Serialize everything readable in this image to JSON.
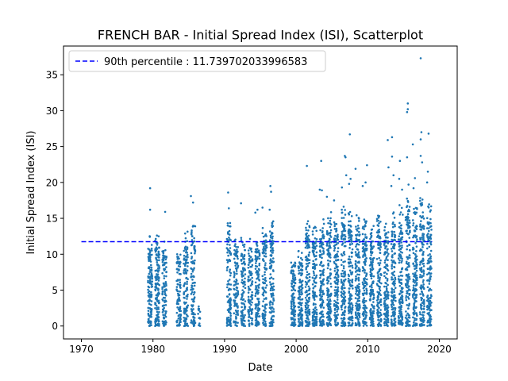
{
  "chart_data": {
    "type": "scatter",
    "title": "FRENCH BAR - Initial Spread Index (ISI), Scatterplot",
    "xlabel": "Date",
    "ylabel": "Initial Spread Index (ISI)",
    "xlim": [
      1967.5,
      2022.5
    ],
    "ylim": [
      -1.8,
      39.0
    ],
    "x_ticks": [
      1970,
      1980,
      1990,
      2000,
      2010,
      2020
    ],
    "y_ticks": [
      0,
      5,
      10,
      15,
      20,
      25,
      30,
      35
    ],
    "grid": false,
    "legend": {
      "placement": "top-left",
      "entries": [
        "90th percentile : 11.739702033996583"
      ]
    },
    "reference_line": {
      "name": "90th percentile : 11.739702033996583",
      "value": 11.739702033996583,
      "x_range": [
        1970,
        2019
      ],
      "style": "dashed",
      "color": "#0000ff"
    },
    "series_color": "#1f77b4",
    "season_clusters": [
      {
        "start": 1979.3,
        "end": 1979.9,
        "n": 130,
        "max": 12.8
      },
      {
        "start": 1980.3,
        "end": 1980.9,
        "n": 140,
        "max": 13.5
      },
      {
        "start": 1981.3,
        "end": 1981.9,
        "n": 110,
        "max": 12.0
      },
      {
        "start": 1983.3,
        "end": 1983.9,
        "n": 90,
        "max": 10.5
      },
      {
        "start": 1984.3,
        "end": 1984.9,
        "n": 120,
        "max": 13.2
      },
      {
        "start": 1985.3,
        "end": 1985.9,
        "n": 110,
        "max": 14.5
      },
      {
        "start": 1986.3,
        "end": 1986.6,
        "n": 15,
        "max": 3.0
      },
      {
        "start": 1990.3,
        "end": 1990.9,
        "n": 120,
        "max": 14.5
      },
      {
        "start": 1991.3,
        "end": 1991.9,
        "n": 100,
        "max": 12.2
      },
      {
        "start": 1992.3,
        "end": 1992.9,
        "n": 110,
        "max": 12.5
      },
      {
        "start": 1993.3,
        "end": 1993.9,
        "n": 100,
        "max": 12.8
      },
      {
        "start": 1994.3,
        "end": 1994.9,
        "n": 120,
        "max": 13.0
      },
      {
        "start": 1995.3,
        "end": 1995.9,
        "n": 110,
        "max": 14.0
      },
      {
        "start": 1996.3,
        "end": 1996.9,
        "n": 120,
        "max": 15.0
      },
      {
        "start": 1999.3,
        "end": 1999.9,
        "n": 120,
        "max": 9.0
      },
      {
        "start": 2000.3,
        "end": 2000.9,
        "n": 130,
        "max": 10.5
      },
      {
        "start": 2001.3,
        "end": 2001.9,
        "n": 150,
        "max": 15.4
      },
      {
        "start": 2002.3,
        "end": 2002.9,
        "n": 150,
        "max": 14.0
      },
      {
        "start": 2003.3,
        "end": 2003.9,
        "n": 150,
        "max": 15.0
      },
      {
        "start": 2004.3,
        "end": 2004.9,
        "n": 150,
        "max": 16.0
      },
      {
        "start": 2005.3,
        "end": 2005.9,
        "n": 150,
        "max": 15.0
      },
      {
        "start": 2006.3,
        "end": 2006.9,
        "n": 150,
        "max": 17.0
      },
      {
        "start": 2007.3,
        "end": 2007.9,
        "n": 150,
        "max": 16.0
      },
      {
        "start": 2008.3,
        "end": 2008.9,
        "n": 150,
        "max": 15.5
      },
      {
        "start": 2009.3,
        "end": 2009.9,
        "n": 150,
        "max": 15.0
      },
      {
        "start": 2010.3,
        "end": 2010.9,
        "n": 140,
        "max": 14.0
      },
      {
        "start": 2011.3,
        "end": 2011.9,
        "n": 140,
        "max": 15.5
      },
      {
        "start": 2012.3,
        "end": 2012.9,
        "n": 140,
        "max": 14.5
      },
      {
        "start": 2013.3,
        "end": 2013.9,
        "n": 150,
        "max": 16.0
      },
      {
        "start": 2014.3,
        "end": 2014.9,
        "n": 150,
        "max": 17.0
      },
      {
        "start": 2015.3,
        "end": 2015.9,
        "n": 150,
        "max": 18.0
      },
      {
        "start": 2016.3,
        "end": 2016.9,
        "n": 150,
        "max": 16.5
      },
      {
        "start": 2017.3,
        "end": 2017.9,
        "n": 150,
        "max": 18.0
      },
      {
        "start": 2018.3,
        "end": 2018.9,
        "n": 150,
        "max": 17.0
      }
    ],
    "highlighted_points": [
      {
        "x": 1979.6,
        "y": 19.2
      },
      {
        "x": 1979.6,
        "y": 16.2
      },
      {
        "x": 1981.7,
        "y": 15.9
      },
      {
        "x": 1985.3,
        "y": 18.1
      },
      {
        "x": 1985.6,
        "y": 17.2
      },
      {
        "x": 1990.5,
        "y": 18.6
      },
      {
        "x": 1990.6,
        "y": 16.4
      },
      {
        "x": 1992.3,
        "y": 17.1
      },
      {
        "x": 1994.3,
        "y": 15.8
      },
      {
        "x": 1994.6,
        "y": 16.2
      },
      {
        "x": 1995.3,
        "y": 16.5
      },
      {
        "x": 1996.4,
        "y": 19.5
      },
      {
        "x": 1996.5,
        "y": 18.7
      },
      {
        "x": 1996.3,
        "y": 16.2
      },
      {
        "x": 2001.5,
        "y": 22.3
      },
      {
        "x": 2003.3,
        "y": 19.0
      },
      {
        "x": 2003.5,
        "y": 23.0
      },
      {
        "x": 2003.6,
        "y": 18.9
      },
      {
        "x": 2004.3,
        "y": 18.0
      },
      {
        "x": 2005.3,
        "y": 17.5
      },
      {
        "x": 2006.4,
        "y": 19.3
      },
      {
        "x": 2006.8,
        "y": 23.7
      },
      {
        "x": 2006.9,
        "y": 23.5
      },
      {
        "x": 2007.0,
        "y": 21.0
      },
      {
        "x": 2007.5,
        "y": 26.7
      },
      {
        "x": 2007.6,
        "y": 20.5
      },
      {
        "x": 2007.4,
        "y": 19.8
      },
      {
        "x": 2008.3,
        "y": 21.9
      },
      {
        "x": 2009.3,
        "y": 19.5
      },
      {
        "x": 2009.9,
        "y": 22.4
      },
      {
        "x": 2009.7,
        "y": 20.0
      },
      {
        "x": 2012.8,
        "y": 25.9
      },
      {
        "x": 2012.9,
        "y": 22.1
      },
      {
        "x": 2013.4,
        "y": 26.3
      },
      {
        "x": 2013.4,
        "y": 23.6
      },
      {
        "x": 2013.6,
        "y": 21.0
      },
      {
        "x": 2013.3,
        "y": 19.5
      },
      {
        "x": 2014.5,
        "y": 23.0
      },
      {
        "x": 2014.4,
        "y": 20.5
      },
      {
        "x": 2014.8,
        "y": 19.0
      },
      {
        "x": 2015.6,
        "y": 31.0
      },
      {
        "x": 2015.6,
        "y": 30.2
      },
      {
        "x": 2015.5,
        "y": 29.8
      },
      {
        "x": 2015.5,
        "y": 23.5
      },
      {
        "x": 2015.7,
        "y": 19.7
      },
      {
        "x": 2016.3,
        "y": 25.3
      },
      {
        "x": 2016.6,
        "y": 20.6
      },
      {
        "x": 2016.4,
        "y": 19.2
      },
      {
        "x": 2017.4,
        "y": 37.3
      },
      {
        "x": 2017.5,
        "y": 27.0
      },
      {
        "x": 2017.4,
        "y": 26.0
      },
      {
        "x": 2017.4,
        "y": 23.7
      },
      {
        "x": 2017.6,
        "y": 22.8
      },
      {
        "x": 2018.5,
        "y": 26.8
      },
      {
        "x": 2018.4,
        "y": 21.5
      },
      {
        "x": 2018.3,
        "y": 20.0
      }
    ]
  }
}
